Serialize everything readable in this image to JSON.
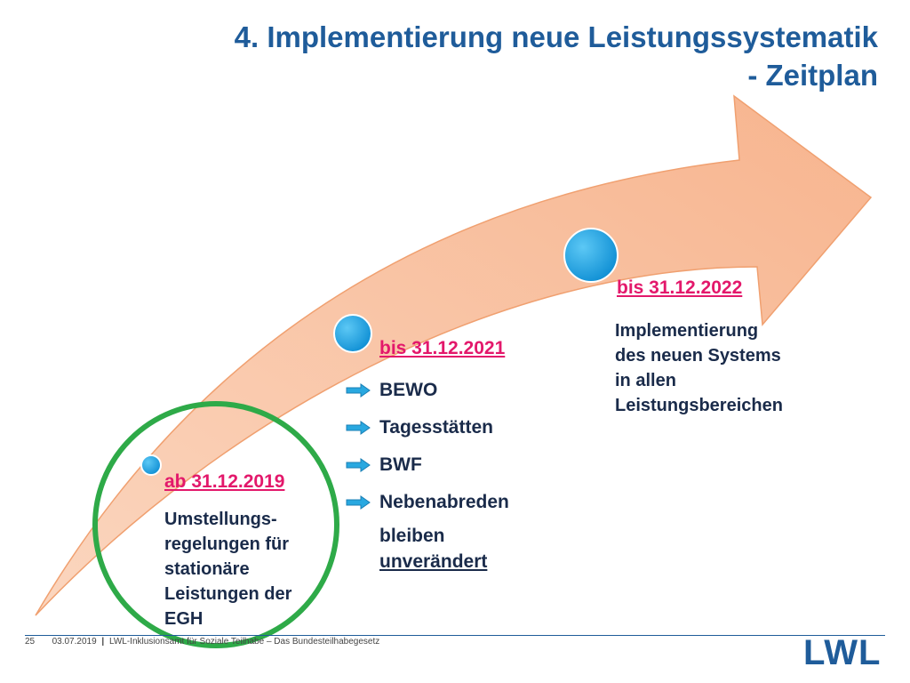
{
  "title": {
    "line1": "4. Implementierung neue Leistungssystematik",
    "line2": "- Zeitplan"
  },
  "milestones": [
    {
      "date": "ab 31.12.2019",
      "lines": [
        "Umstellungs-",
        "regelungen für",
        "stationäre",
        "Leistungen der",
        "EGH"
      ]
    },
    {
      "date": "bis 31.12.2021",
      "bullets": [
        "BEWO",
        "Tagesstätten",
        "BWF",
        "Nebenabreden"
      ],
      "note_plain": "bleiben",
      "note_underlined": "unverändert"
    },
    {
      "date": "bis 31.12.2022",
      "lines": [
        "Implementierung",
        "des neuen Systems",
        "in allen",
        "Leistungsbereichen"
      ]
    }
  ],
  "footer": {
    "page_number": "25",
    "date": "03.07.2019",
    "separator": "|",
    "text": "LWL-Inklusionsamt für Soziale Teilhabe – Das Bundesteilhabegesetz"
  },
  "logo": "LWL",
  "colors": {
    "title": "#1f5c9a",
    "date_accent": "#e3186b",
    "arrow_fill": "#f9c2a4",
    "arrow_stroke": "#f0a070",
    "dot": "#1aa6e8",
    "highlight_circle": "#2eaa48"
  },
  "icons": {
    "bullet": "arrow-bullet-icon",
    "dot": "timeline-dot-icon"
  }
}
